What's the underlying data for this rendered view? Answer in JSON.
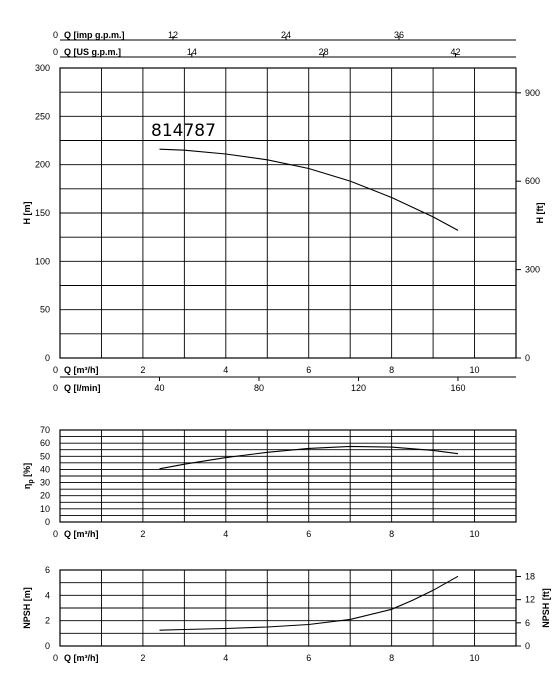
{
  "chart_data": [
    {
      "panel": "head",
      "type": "line",
      "annotation": "814787",
      "ylabel": "H [m]",
      "ylabel_right": "H [ft]",
      "xlim": [
        0,
        11
      ],
      "ylim": [
        0,
        300
      ],
      "yticks": [
        "0",
        "50",
        "100",
        "150",
        "200",
        "250",
        "300"
      ],
      "yticks_right": [
        {
          "label": "0",
          "value": 0
        },
        {
          "label": "300",
          "value": 91.44
        },
        {
          "label": "600",
          "value": 182.88
        },
        {
          "label": "900",
          "value": 274.32
        }
      ],
      "top_axes": [
        {
          "label": "Q [imp g.p.m.]",
          "zero": "0",
          "ticks": [
            {
              "label": "12",
              "value": 2.726
            },
            {
              "label": "24",
              "value": 5.452
            },
            {
              "label": "36",
              "value": 8.178
            }
          ]
        },
        {
          "label": "Q [US g.p.m.]",
          "zero": "0",
          "ticks": [
            {
              "label": "14",
              "value": 3.18
            },
            {
              "label": "28",
              "value": 6.36
            },
            {
              "label": "42",
              "value": 9.54
            }
          ]
        }
      ],
      "bottom_axes": [
        {
          "label": "Q [m³/h]",
          "zero": "0",
          "ticks": [
            {
              "label": "2",
              "value": 2
            },
            {
              "label": "4",
              "value": 4
            },
            {
              "label": "6",
              "value": 6
            },
            {
              "label": "8",
              "value": 8
            },
            {
              "label": "10",
              "value": 10
            }
          ]
        },
        {
          "label": "Q [l/min]",
          "zero": "0",
          "ticks": [
            {
              "label": "40",
              "value": 2.4
            },
            {
              "label": "80",
              "value": 4.8
            },
            {
              "label": "120",
              "value": 7.2
            },
            {
              "label": "160",
              "value": 9.6
            }
          ]
        }
      ],
      "series": [
        {
          "x": [
            2.4,
            3,
            4,
            5,
            6,
            7,
            8,
            9,
            9.6
          ],
          "y": [
            216,
            215,
            211,
            205,
            196,
            183,
            166,
            146,
            132
          ]
        }
      ],
      "grid": true
    },
    {
      "panel": "efficiency",
      "type": "line",
      "ylabel": "ηp [%]",
      "ylabel_main": "η",
      "ylabel_sub": "p",
      "ylabel_unit": "[%]",
      "xlabel": "Q [m³/h]",
      "xlim": [
        0,
        11
      ],
      "ylim": [
        0,
        70
      ],
      "yticks": [
        "0",
        "10",
        "20",
        "30",
        "40",
        "50",
        "60",
        "70"
      ],
      "xticks": [
        "0",
        "2",
        "4",
        "6",
        "8",
        "10"
      ],
      "series": [
        {
          "x": [
            2.4,
            3,
            4,
            5,
            6,
            7,
            8,
            9,
            9.6
          ],
          "y": [
            40.5,
            44,
            49,
            53,
            56,
            57.5,
            57,
            54.5,
            52
          ]
        }
      ],
      "grid": true
    },
    {
      "panel": "npsh",
      "type": "line",
      "ylabel": "NPSH [m]",
      "ylabel_right": "NPSH [ft]",
      "xlabel": "Q [m³/h]",
      "xlim": [
        0,
        11
      ],
      "ylim": [
        0,
        6
      ],
      "yticks": [
        "0",
        "2",
        "4",
        "6"
      ],
      "yticks_right": [
        {
          "label": "0",
          "value": 0
        },
        {
          "label": "6",
          "value": 1.829
        },
        {
          "label": "12",
          "value": 3.658
        },
        {
          "label": "18",
          "value": 5.486
        }
      ],
      "xticks": [
        "0",
        "2",
        "4",
        "6",
        "8",
        "10"
      ],
      "series": [
        {
          "x": [
            2.4,
            3,
            4,
            5,
            6,
            7,
            8,
            8.5,
            9,
            9.6
          ],
          "y": [
            1.25,
            1.3,
            1.38,
            1.5,
            1.7,
            2.1,
            2.9,
            3.6,
            4.4,
            5.5
          ]
        }
      ],
      "grid": true
    }
  ]
}
